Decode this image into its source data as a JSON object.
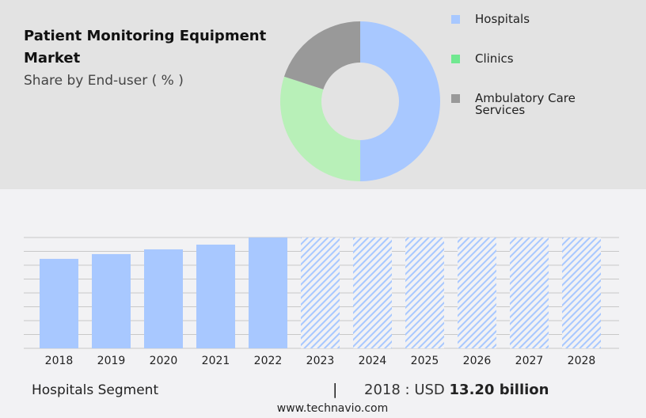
{
  "header": {
    "title": "Patient Monitoring Equipment Market",
    "subtitle": "Share by End-user ( % )"
  },
  "chart_data": [
    {
      "type": "pie",
      "donut": true,
      "labels": [
        "Hospitals",
        "Clinics",
        "Ambulatory Care Services"
      ],
      "values": [
        50,
        30,
        20
      ],
      "colors": [
        "#a8c8ff",
        "#b8f0b8",
        "#999999"
      ],
      "legend_colors": [
        "#a8c8ff",
        "#70e890",
        "#999999"
      ],
      "legend": "right"
    },
    {
      "type": "bar",
      "categories": [
        "2018",
        "2019",
        "2020",
        "2021",
        "2022",
        "2023",
        "2024",
        "2025",
        "2026",
        "2027",
        "2028"
      ],
      "values": [
        13.2,
        13.9,
        14.6,
        15.3,
        16.35,
        null,
        null,
        null,
        null,
        null,
        null
      ],
      "forecast": [
        false,
        false,
        false,
        false,
        false,
        true,
        true,
        true,
        true,
        true,
        true
      ],
      "unit": "USD billion",
      "grid": true,
      "color": "#a8c8ff"
    }
  ],
  "footer": {
    "segment": "Hospitals Segment",
    "separator": "|",
    "year_label": "2018 : USD",
    "value": "13.20 billion",
    "site": "www.technavio.com"
  }
}
